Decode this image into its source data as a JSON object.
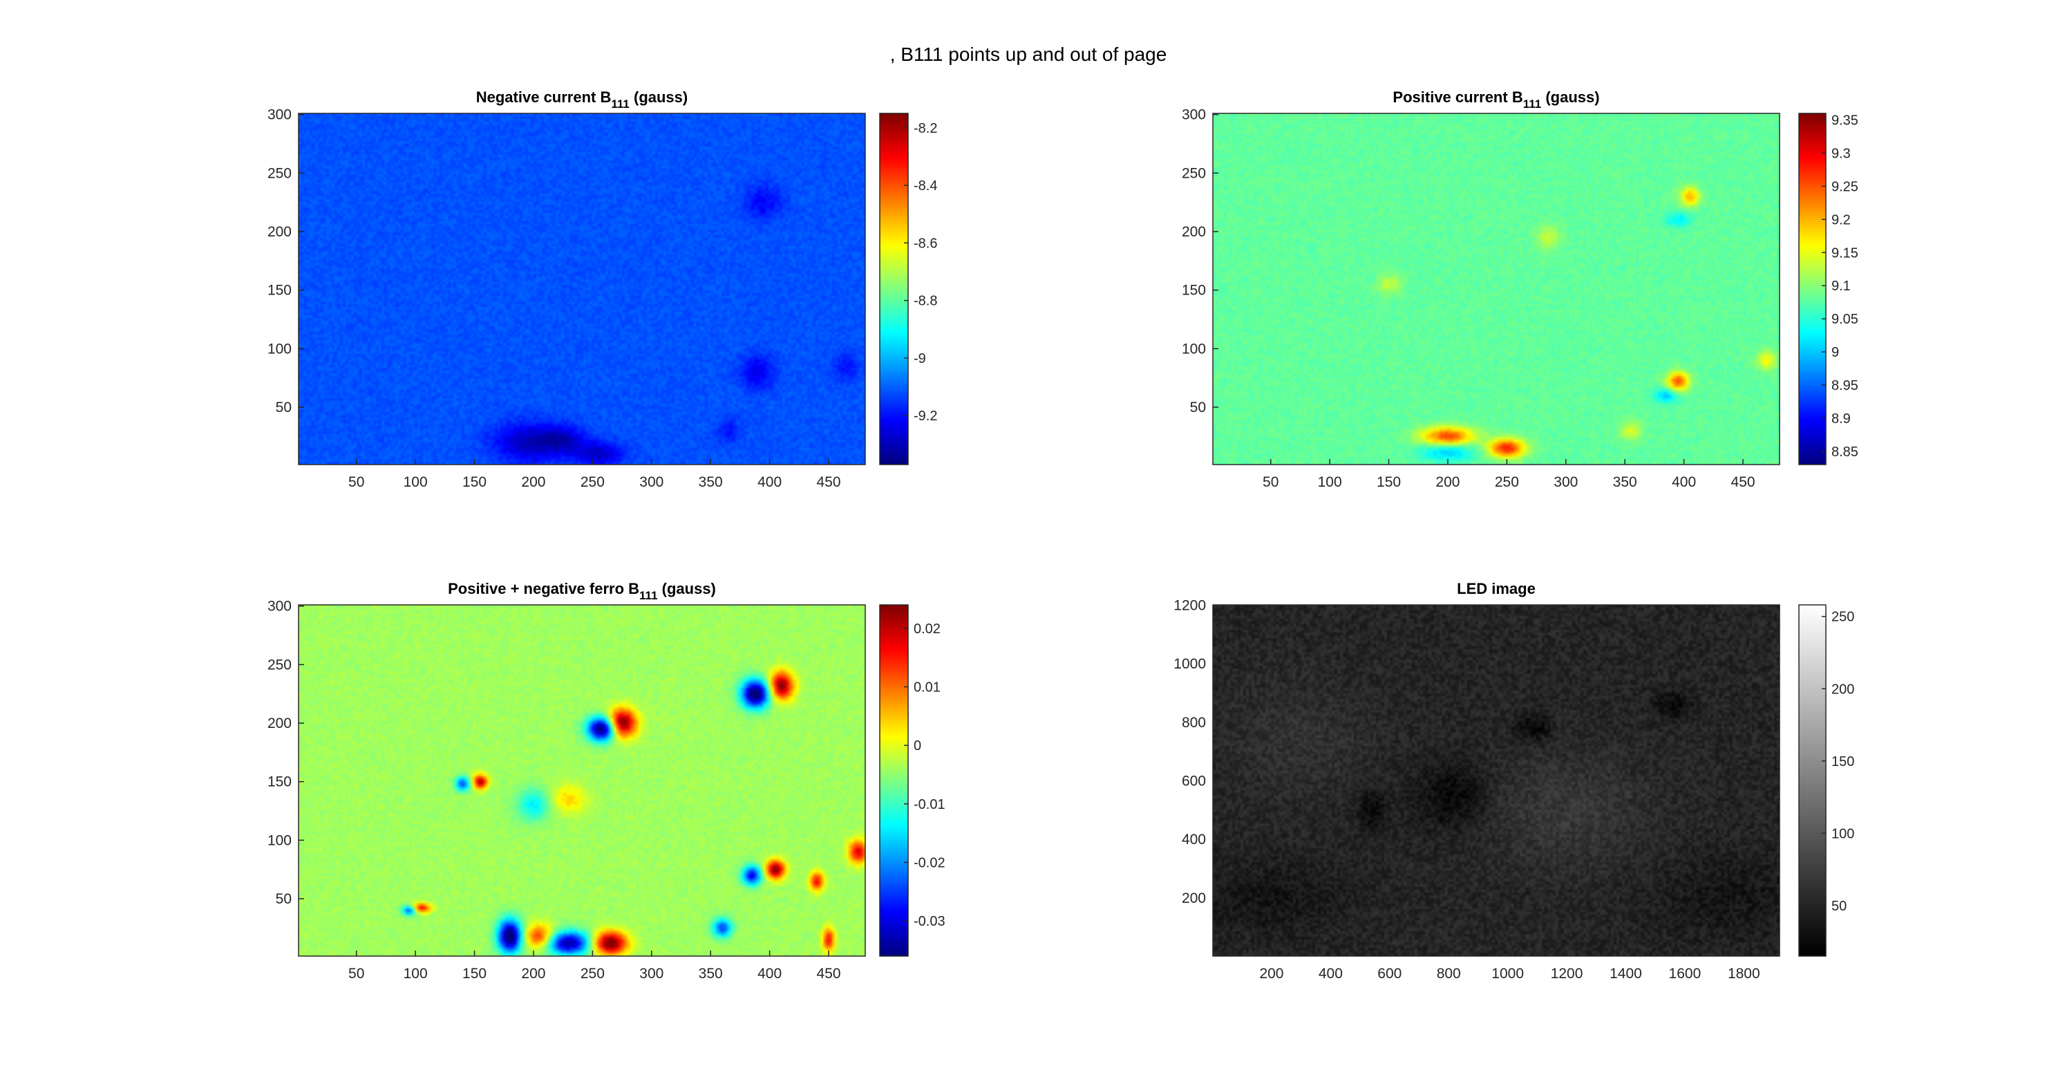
{
  "figure": {
    "suptitle": ", B111 points up and out of page"
  },
  "chart_data": [
    {
      "type": "heatmap",
      "title_main": "Negative current B",
      "title_sub": "111",
      "title_tail": " (gauss)",
      "xlim": [
        1,
        481
      ],
      "ylim": [
        1,
        301
      ],
      "xticks": [
        50,
        100,
        150,
        200,
        250,
        300,
        350,
        400,
        450
      ],
      "yticks": [
        50,
        100,
        150,
        200,
        250,
        300
      ],
      "colormap": "jet",
      "clim": [
        -9.37,
        -8.15
      ],
      "cticks": [
        -9.2,
        -9,
        -8.8,
        -8.6,
        -8.4,
        -8.2
      ],
      "background_value": -9.12,
      "features": [
        {
          "x": 195,
          "y": 20,
          "rx": 28,
          "ry": 16,
          "amp": -0.18
        },
        {
          "x": 225,
          "y": 22,
          "rx": 18,
          "ry": 12,
          "amp": -0.15
        },
        {
          "x": 255,
          "y": 10,
          "rx": 20,
          "ry": 10,
          "amp": -0.17
        },
        {
          "x": 390,
          "y": 80,
          "rx": 14,
          "ry": 14,
          "amp": -0.12
        },
        {
          "x": 395,
          "y": 225,
          "rx": 16,
          "ry": 14,
          "amp": -0.1
        },
        {
          "x": 465,
          "y": 85,
          "rx": 10,
          "ry": 12,
          "amp": -0.08
        },
        {
          "x": 365,
          "y": 30,
          "rx": 10,
          "ry": 10,
          "amp": -0.08
        }
      ]
    },
    {
      "type": "heatmap",
      "title_main": "Positive current B",
      "title_sub": "111",
      "title_tail": " (gauss)",
      "xlim": [
        1,
        481
      ],
      "ylim": [
        1,
        301
      ],
      "xticks": [
        50,
        100,
        150,
        200,
        250,
        300,
        350,
        400,
        450
      ],
      "yticks": [
        50,
        100,
        150,
        200,
        250,
        300
      ],
      "colormap": "jet",
      "clim": [
        8.83,
        9.36
      ],
      "cticks": [
        8.85,
        8.9,
        8.95,
        9,
        9.05,
        9.1,
        9.15,
        9.2,
        9.25,
        9.3,
        9.35
      ],
      "background_value": 9.08,
      "features": [
        {
          "x": 200,
          "y": 25,
          "rx": 22,
          "ry": 8,
          "amp": 0.18
        },
        {
          "x": 200,
          "y": 12,
          "rx": 22,
          "ry": 8,
          "amp": -0.08
        },
        {
          "x": 250,
          "y": 15,
          "rx": 15,
          "ry": 8,
          "amp": 0.2
        },
        {
          "x": 395,
          "y": 72,
          "rx": 9,
          "ry": 8,
          "amp": 0.17
        },
        {
          "x": 385,
          "y": 60,
          "rx": 10,
          "ry": 6,
          "amp": -0.08
        },
        {
          "x": 405,
          "y": 230,
          "rx": 8,
          "ry": 8,
          "amp": 0.12
        },
        {
          "x": 395,
          "y": 210,
          "rx": 10,
          "ry": 6,
          "amp": -0.06
        },
        {
          "x": 285,
          "y": 195,
          "rx": 10,
          "ry": 10,
          "amp": 0.05
        },
        {
          "x": 150,
          "y": 155,
          "rx": 10,
          "ry": 8,
          "amp": 0.05
        },
        {
          "x": 470,
          "y": 90,
          "rx": 8,
          "ry": 8,
          "amp": 0.08
        },
        {
          "x": 355,
          "y": 30,
          "rx": 9,
          "ry": 8,
          "amp": 0.06
        }
      ]
    },
    {
      "type": "heatmap",
      "title_main": "Positive + negative ferro B",
      "title_sub": "111",
      "title_tail": " (gauss)",
      "xlim": [
        1,
        481
      ],
      "ylim": [
        1,
        301
      ],
      "xticks": [
        50,
        100,
        150,
        200,
        250,
        300,
        350,
        400,
        450
      ],
      "yticks": [
        50,
        100,
        150,
        200,
        250,
        300
      ],
      "colormap": "jet",
      "clim": [
        -0.036,
        0.024
      ],
      "cticks": [
        -0.03,
        -0.02,
        -0.01,
        0,
        0.01,
        0.02
      ],
      "background_value": -0.004,
      "features": [
        {
          "x": 275,
          "y": 200,
          "rx": 12,
          "ry": 12,
          "amp": 0.03
        },
        {
          "x": 258,
          "y": 195,
          "rx": 12,
          "ry": 10,
          "amp": -0.035
        },
        {
          "x": 410,
          "y": 232,
          "rx": 10,
          "ry": 12,
          "amp": 0.028
        },
        {
          "x": 388,
          "y": 225,
          "rx": 12,
          "ry": 12,
          "amp": -0.035
        },
        {
          "x": 155,
          "y": 150,
          "rx": 6,
          "ry": 6,
          "amp": 0.025
        },
        {
          "x": 140,
          "y": 148,
          "rx": 6,
          "ry": 6,
          "amp": -0.02
        },
        {
          "x": 265,
          "y": 12,
          "rx": 14,
          "ry": 10,
          "amp": 0.03
        },
        {
          "x": 180,
          "y": 18,
          "rx": 10,
          "ry": 14,
          "amp": -0.035
        },
        {
          "x": 230,
          "y": 12,
          "rx": 18,
          "ry": 10,
          "amp": -0.03
        },
        {
          "x": 205,
          "y": 18,
          "rx": 12,
          "ry": 10,
          "amp": 0.018
        },
        {
          "x": 405,
          "y": 75,
          "rx": 8,
          "ry": 8,
          "amp": 0.028
        },
        {
          "x": 385,
          "y": 70,
          "rx": 8,
          "ry": 8,
          "amp": -0.025
        },
        {
          "x": 360,
          "y": 25,
          "rx": 8,
          "ry": 8,
          "amp": -0.02
        },
        {
          "x": 475,
          "y": 90,
          "rx": 8,
          "ry": 10,
          "amp": 0.022
        },
        {
          "x": 105,
          "y": 42,
          "rx": 8,
          "ry": 4,
          "amp": 0.02
        },
        {
          "x": 95,
          "y": 40,
          "rx": 6,
          "ry": 4,
          "amp": -0.02
        },
        {
          "x": 230,
          "y": 135,
          "rx": 14,
          "ry": 12,
          "amp": 0.008
        },
        {
          "x": 200,
          "y": 130,
          "rx": 14,
          "ry": 14,
          "amp": -0.01
        },
        {
          "x": 440,
          "y": 65,
          "rx": 6,
          "ry": 8,
          "amp": 0.02
        },
        {
          "x": 450,
          "y": 15,
          "rx": 5,
          "ry": 10,
          "amp": 0.02
        }
      ]
    },
    {
      "type": "heatmap",
      "title_main": "LED image",
      "title_sub": "",
      "title_tail": "",
      "xlim": [
        1,
        1921
      ],
      "ylim": [
        1,
        1201
      ],
      "xticks": [
        200,
        400,
        600,
        800,
        1000,
        1200,
        1400,
        1600,
        1800
      ],
      "yticks": [
        200,
        400,
        600,
        800,
        1000,
        1200
      ],
      "colormap": "gray",
      "clim": [
        15,
        258
      ],
      "cticks": [
        50,
        100,
        150,
        200,
        250
      ],
      "background_value": 50,
      "features": [
        {
          "x": 810,
          "y": 550,
          "rx": 120,
          "ry": 110,
          "amp": -30
        },
        {
          "x": 540,
          "y": 500,
          "rx": 50,
          "ry": 70,
          "amp": -28
        },
        {
          "x": 1090,
          "y": 780,
          "rx": 60,
          "ry": 45,
          "amp": -30
        },
        {
          "x": 1560,
          "y": 860,
          "rx": 60,
          "ry": 45,
          "amp": -28
        },
        {
          "x": 1200,
          "y": 500,
          "rx": 300,
          "ry": 200,
          "amp": 18
        },
        {
          "x": 300,
          "y": 750,
          "rx": 250,
          "ry": 200,
          "amp": 12
        },
        {
          "x": 200,
          "y": 200,
          "rx": 250,
          "ry": 120,
          "amp": -15
        },
        {
          "x": 1750,
          "y": 200,
          "rx": 250,
          "ry": 150,
          "amp": -14
        }
      ]
    }
  ]
}
